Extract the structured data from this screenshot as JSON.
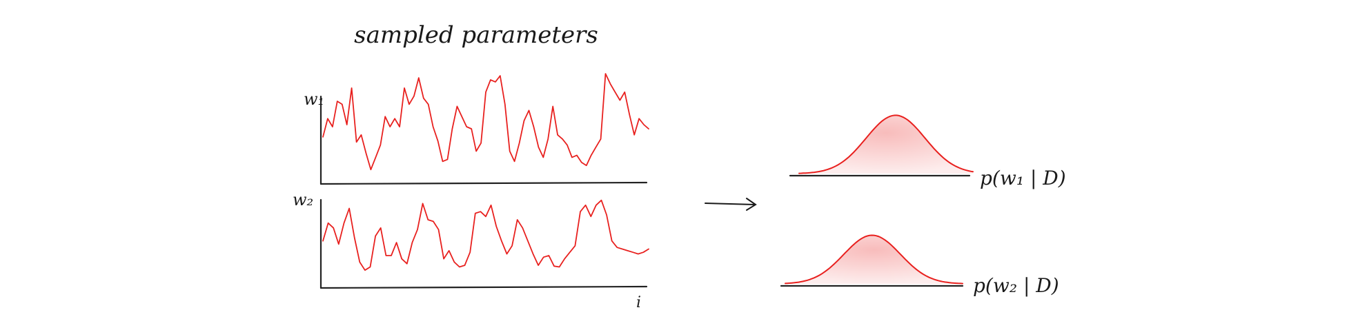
{
  "title": "sampled parameters",
  "trace_color": "#e8201e",
  "ink_color": "#1a1a1a",
  "traces": [
    {
      "label": "w₁",
      "values": [
        0.4,
        0.58,
        0.5,
        0.75,
        0.72,
        0.52,
        0.88,
        0.35,
        0.42,
        0.24,
        0.08,
        0.2,
        0.32,
        0.6,
        0.5,
        0.58,
        0.5,
        0.88,
        0.72,
        0.8,
        0.98,
        0.78,
        0.72,
        0.5,
        0.36,
        0.16,
        0.18,
        0.48,
        0.7,
        0.6,
        0.5,
        0.48,
        0.26,
        0.34,
        0.84,
        0.96,
        0.94,
        1.0,
        0.72,
        0.26,
        0.16,
        0.34,
        0.56,
        0.66,
        0.5,
        0.3,
        0.2,
        0.38,
        0.7,
        0.42,
        0.38,
        0.32,
        0.2,
        0.22,
        0.15,
        0.12,
        0.22,
        0.3,
        0.38,
        1.02,
        0.92,
        0.84,
        0.76,
        0.84,
        0.62,
        0.42,
        0.58,
        0.52,
        0.48
      ]
    },
    {
      "label": "w₂",
      "values": [
        0.46,
        0.68,
        0.62,
        0.42,
        0.68,
        0.86,
        0.5,
        0.2,
        0.1,
        0.14,
        0.52,
        0.62,
        0.28,
        0.28,
        0.44,
        0.24,
        0.18,
        0.44,
        0.6,
        0.92,
        0.72,
        0.7,
        0.6,
        0.24,
        0.34,
        0.2,
        0.14,
        0.16,
        0.32,
        0.8,
        0.82,
        0.76,
        0.9,
        0.64,
        0.46,
        0.3,
        0.4,
        0.72,
        0.62,
        0.46,
        0.3,
        0.16,
        0.26,
        0.28,
        0.15,
        0.14,
        0.24,
        0.32,
        0.4,
        0.82,
        0.9,
        0.76,
        0.9,
        0.96,
        0.78,
        0.46,
        0.38,
        0.36,
        0.34,
        0.32,
        0.3,
        0.32,
        0.36
      ]
    }
  ],
  "x_label": "i",
  "posteriors": [
    {
      "label": "p(w₁ | D)",
      "mean": 0.555,
      "spread": 0.17,
      "height": 0.92
    },
    {
      "label": "p(w₂ | D)",
      "mean": 0.49,
      "spread": 0.16,
      "height": 0.86
    }
  ]
}
